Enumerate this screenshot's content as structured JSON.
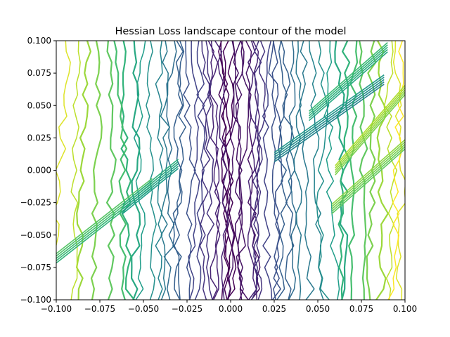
{
  "chart_data": {
    "type": "contour",
    "title": "Hessian Loss landscape contour of the model",
    "xlabel": "",
    "ylabel": "",
    "xlim": [
      -0.1,
      0.1
    ],
    "ylim": [
      -0.1,
      0.1
    ],
    "x_ticks": [
      -0.1,
      -0.075,
      -0.05,
      -0.025,
      0.0,
      0.025,
      0.05,
      0.075,
      0.1
    ],
    "y_ticks": [
      -0.1,
      -0.075,
      -0.05,
      -0.025,
      0.0,
      0.025,
      0.05,
      0.075,
      0.1
    ],
    "x_tick_labels": [
      "−0.100",
      "−0.075",
      "−0.050",
      "−0.025",
      "0.000",
      "0.025",
      "0.050",
      "0.075",
      "0.100"
    ],
    "y_tick_labels": [
      "−0.100",
      "−0.075",
      "−0.050",
      "−0.025",
      "0.000",
      "0.025",
      "0.050",
      "0.075",
      "0.100"
    ],
    "colormap": "viridis",
    "colormap_stops": [
      "#440154",
      "#482878",
      "#3e4989",
      "#31688e",
      "#26828e",
      "#1f9e89",
      "#35b779",
      "#6ece58",
      "#b5de2b",
      "#fde725"
    ],
    "grid": false,
    "levels": [
      {
        "level": 0.0,
        "xs": [
          -0.006,
          -0.004,
          -0.002,
          0.0
        ]
      },
      {
        "level": 0.05,
        "xs": [
          0.002,
          0.004,
          0.006,
          0.008,
          0.01
        ]
      },
      {
        "level": 0.1,
        "xs": [
          -0.011,
          -0.009,
          -0.007,
          0.012,
          0.014
        ]
      },
      {
        "level": 0.15,
        "xs": [
          -0.016,
          -0.014,
          0.016,
          0.018
        ]
      },
      {
        "level": 0.2,
        "xs": [
          -0.021,
          -0.019,
          0.021
        ]
      },
      {
        "level": 0.25,
        "xs": [
          -0.025,
          0.024,
          0.026
        ]
      },
      {
        "level": 0.3,
        "xs": [
          -0.029,
          -0.027,
          0.029,
          0.031
        ]
      },
      {
        "level": 0.35,
        "xs": [
          -0.033,
          0.034
        ]
      },
      {
        "level": 0.4,
        "xs": [
          -0.037,
          0.038,
          0.042
        ]
      },
      {
        "level": 0.45,
        "xs": [
          -0.041,
          0.047
        ]
      },
      {
        "level": 0.5,
        "xs": [
          -0.046,
          0.052
        ]
      },
      {
        "level": 0.55,
        "xs": [
          -0.05,
          0.057
        ]
      },
      {
        "level": 0.6,
        "xs": [
          -0.055,
          0.062
        ]
      },
      {
        "level": 0.65,
        "xs": [
          -0.06,
          0.066
        ]
      },
      {
        "level": 0.7,
        "xs": [
          -0.065,
          0.071
        ]
      },
      {
        "level": 0.75,
        "xs": [
          -0.07,
          0.076
        ]
      },
      {
        "level": 0.8,
        "xs": [
          -0.076,
          0.081
        ]
      },
      {
        "level": 0.85,
        "xs": [
          -0.082,
          0.086
        ]
      },
      {
        "level": 0.9,
        "xs": [
          -0.088,
          0.091
        ]
      },
      {
        "level": 0.95,
        "xs": [
          -0.094,
          0.095
        ]
      },
      {
        "level": 1.0,
        "xs": [
          0.098
        ]
      }
    ],
    "diagonals": [
      {
        "level": 0.65,
        "from": [
          -0.1,
          -0.068
        ],
        "to": [
          -0.045,
          -0.01
        ]
      },
      {
        "level": 0.55,
        "from": [
          -0.062,
          -0.03
        ],
        "to": [
          -0.03,
          0.005
        ]
      },
      {
        "level": 0.45,
        "from": [
          0.025,
          0.01
        ],
        "to": [
          0.088,
          0.07
        ]
      },
      {
        "level": 0.6,
        "from": [
          0.045,
          0.042
        ],
        "to": [
          0.09,
          0.095
        ]
      },
      {
        "level": 0.75,
        "from": [
          0.058,
          -0.03
        ],
        "to": [
          0.1,
          0.02
        ]
      },
      {
        "level": 0.8,
        "from": [
          0.06,
          0.0
        ],
        "to": [
          0.1,
          0.062
        ]
      }
    ]
  }
}
